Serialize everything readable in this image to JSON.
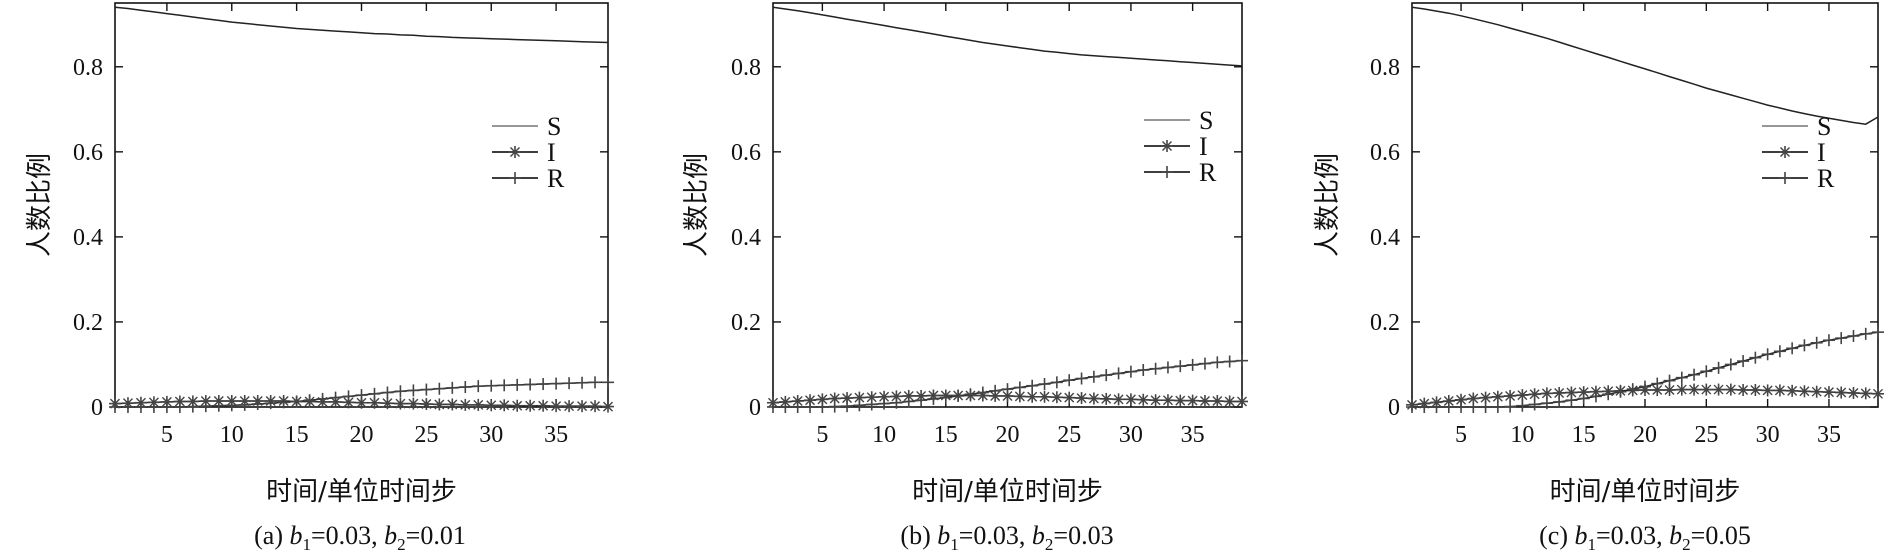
{
  "chart_data": [
    {
      "type": "line",
      "panel": "a",
      "caption_prefix": "(a) ",
      "b1_value": "=0.03, ",
      "b2_value": "=0.01",
      "xlabel": "时间/单位时间步",
      "ylabel": "人数比例",
      "xlim": [
        1,
        39
      ],
      "ylim": [
        0,
        0.95
      ],
      "xticks": [
        5,
        10,
        15,
        20,
        25,
        30,
        35
      ],
      "yticks": [
        0,
        0.2,
        0.4,
        0.6,
        0.8
      ],
      "legend_position": "right-middle",
      "grid": false,
      "x": [
        1,
        2,
        3,
        4,
        5,
        6,
        7,
        8,
        9,
        10,
        11,
        12,
        13,
        14,
        15,
        16,
        17,
        18,
        19,
        20,
        21,
        22,
        23,
        24,
        25,
        26,
        27,
        28,
        29,
        30,
        31,
        32,
        33,
        34,
        35,
        36,
        37,
        38,
        39
      ],
      "series": [
        {
          "name": "S",
          "marker": "none",
          "values": [
            0.94,
            0.937,
            0.933,
            0.929,
            0.925,
            0.921,
            0.917,
            0.913,
            0.909,
            0.905,
            0.902,
            0.899,
            0.896,
            0.893,
            0.89,
            0.888,
            0.886,
            0.884,
            0.882,
            0.88,
            0.878,
            0.877,
            0.875,
            0.874,
            0.872,
            0.871,
            0.869,
            0.868,
            0.867,
            0.866,
            0.865,
            0.864,
            0.863,
            0.862,
            0.861,
            0.86,
            0.859,
            0.858,
            0.857
          ]
        },
        {
          "name": "I",
          "marker": "star",
          "values": [
            0.008,
            0.009,
            0.01,
            0.011,
            0.012,
            0.013,
            0.013,
            0.014,
            0.014,
            0.014,
            0.014,
            0.014,
            0.014,
            0.014,
            0.013,
            0.013,
            0.012,
            0.012,
            0.011,
            0.01,
            0.01,
            0.009,
            0.008,
            0.008,
            0.007,
            0.006,
            0.006,
            0.005,
            0.005,
            0.004,
            0.004,
            0.003,
            0.003,
            0.003,
            0.002,
            0.002,
            0.002,
            0.002,
            0.001
          ]
        },
        {
          "name": "R",
          "marker": "plus",
          "values": [
            0,
            0,
            0,
            0,
            0,
            0,
            0.001,
            0.002,
            0.003,
            0.004,
            0.005,
            0.007,
            0.009,
            0.011,
            0.013,
            0.016,
            0.019,
            0.022,
            0.025,
            0.028,
            0.031,
            0.034,
            0.037,
            0.039,
            0.041,
            0.043,
            0.045,
            0.047,
            0.049,
            0.05,
            0.051,
            0.052,
            0.053,
            0.054,
            0.055,
            0.056,
            0.057,
            0.058,
            0.058
          ]
        }
      ]
    },
    {
      "type": "line",
      "panel": "b",
      "caption_prefix": "(b) ",
      "b1_value": "=0.03, ",
      "b2_value": "=0.03",
      "xlabel": "时间/单位时间步",
      "ylabel": "人数比例",
      "xlim": [
        1,
        39
      ],
      "ylim": [
        0,
        0.95
      ],
      "xticks": [
        5,
        10,
        15,
        20,
        25,
        30,
        35
      ],
      "yticks": [
        0,
        0.2,
        0.4,
        0.6,
        0.8
      ],
      "legend_position": "right-middle",
      "grid": false,
      "x": [
        1,
        2,
        3,
        4,
        5,
        6,
        7,
        8,
        9,
        10,
        11,
        12,
        13,
        14,
        15,
        16,
        17,
        18,
        19,
        20,
        21,
        22,
        23,
        24,
        25,
        26,
        27,
        28,
        29,
        30,
        31,
        32,
        33,
        34,
        35,
        36,
        37,
        38,
        39
      ],
      "series": [
        {
          "name": "S",
          "marker": "none",
          "values": [
            0.94,
            0.936,
            0.932,
            0.927,
            0.922,
            0.917,
            0.912,
            0.907,
            0.902,
            0.897,
            0.892,
            0.887,
            0.882,
            0.877,
            0.872,
            0.867,
            0.862,
            0.857,
            0.853,
            0.849,
            0.845,
            0.841,
            0.837,
            0.834,
            0.831,
            0.828,
            0.826,
            0.824,
            0.822,
            0.82,
            0.818,
            0.816,
            0.814,
            0.812,
            0.81,
            0.808,
            0.806,
            0.804,
            0.802
          ]
        },
        {
          "name": "I",
          "marker": "star",
          "values": [
            0.01,
            0.012,
            0.014,
            0.016,
            0.018,
            0.02,
            0.021,
            0.022,
            0.023,
            0.024,
            0.025,
            0.026,
            0.026,
            0.027,
            0.027,
            0.027,
            0.027,
            0.027,
            0.026,
            0.026,
            0.025,
            0.024,
            0.024,
            0.023,
            0.022,
            0.021,
            0.02,
            0.019,
            0.018,
            0.018,
            0.017,
            0.016,
            0.016,
            0.015,
            0.015,
            0.014,
            0.014,
            0.013,
            0.013
          ]
        },
        {
          "name": "R",
          "marker": "plus",
          "values": [
            0,
            0,
            0,
            0,
            0,
            0.001,
            0.002,
            0.004,
            0.006,
            0.008,
            0.01,
            0.013,
            0.016,
            0.019,
            0.022,
            0.026,
            0.03,
            0.034,
            0.038,
            0.042,
            0.046,
            0.05,
            0.054,
            0.058,
            0.063,
            0.067,
            0.071,
            0.075,
            0.079,
            0.083,
            0.087,
            0.09,
            0.093,
            0.096,
            0.099,
            0.102,
            0.105,
            0.107,
            0.109
          ]
        }
      ]
    },
    {
      "type": "line",
      "panel": "c",
      "caption_prefix": "(c) ",
      "b1_value": "=0.03, ",
      "b2_value": "=0.05",
      "xlabel": "时间/单位时间步",
      "ylabel": "人数比例",
      "xlim": [
        1,
        39
      ],
      "ylim": [
        0,
        0.95
      ],
      "xticks": [
        5,
        10,
        15,
        20,
        25,
        30,
        35
      ],
      "yticks": [
        0,
        0.2,
        0.4,
        0.6,
        0.8
      ],
      "legend_position": "right-middle",
      "grid": false,
      "x": [
        1,
        2,
        3,
        4,
        5,
        6,
        7,
        8,
        9,
        10,
        11,
        12,
        13,
        14,
        15,
        16,
        17,
        18,
        19,
        20,
        21,
        22,
        23,
        24,
        25,
        26,
        27,
        28,
        29,
        30,
        31,
        32,
        33,
        34,
        35,
        36,
        37,
        38,
        39
      ],
      "series": [
        {
          "name": "S",
          "marker": "none",
          "values": [
            0.94,
            0.936,
            0.931,
            0.926,
            0.92,
            0.913,
            0.906,
            0.899,
            0.891,
            0.883,
            0.875,
            0.867,
            0.858,
            0.849,
            0.84,
            0.831,
            0.822,
            0.813,
            0.804,
            0.795,
            0.786,
            0.777,
            0.768,
            0.759,
            0.75,
            0.742,
            0.734,
            0.726,
            0.718,
            0.71,
            0.703,
            0.696,
            0.69,
            0.684,
            0.679,
            0.674,
            0.669,
            0.665,
            0.682
          ]
        },
        {
          "name": "I",
          "marker": "star",
          "values": [
            0.005,
            0.008,
            0.011,
            0.014,
            0.017,
            0.02,
            0.022,
            0.024,
            0.026,
            0.028,
            0.03,
            0.032,
            0.033,
            0.034,
            0.035,
            0.036,
            0.037,
            0.038,
            0.039,
            0.04,
            0.04,
            0.04,
            0.041,
            0.041,
            0.041,
            0.041,
            0.041,
            0.04,
            0.04,
            0.039,
            0.039,
            0.038,
            0.037,
            0.036,
            0.035,
            0.034,
            0.033,
            0.032,
            0.031
          ]
        },
        {
          "name": "R",
          "marker": "plus",
          "values": [
            0,
            0,
            0,
            0,
            0,
            0,
            0,
            0,
            0.001,
            0.003,
            0.006,
            0.009,
            0.012,
            0.016,
            0.02,
            0.025,
            0.03,
            0.036,
            0.042,
            0.048,
            0.055,
            0.062,
            0.069,
            0.076,
            0.084,
            0.092,
            0.1,
            0.108,
            0.116,
            0.124,
            0.131,
            0.138,
            0.145,
            0.151,
            0.157,
            0.162,
            0.167,
            0.172,
            0.176
          ]
        }
      ]
    }
  ],
  "subscripts": {
    "b1_letter": "b",
    "b1_sub": "1",
    "b2_letter": "b",
    "b2_sub": "2"
  },
  "colors": {
    "axis": "#111111",
    "line": "#222222",
    "marker": "#444444",
    "legend_line": "#888888"
  }
}
